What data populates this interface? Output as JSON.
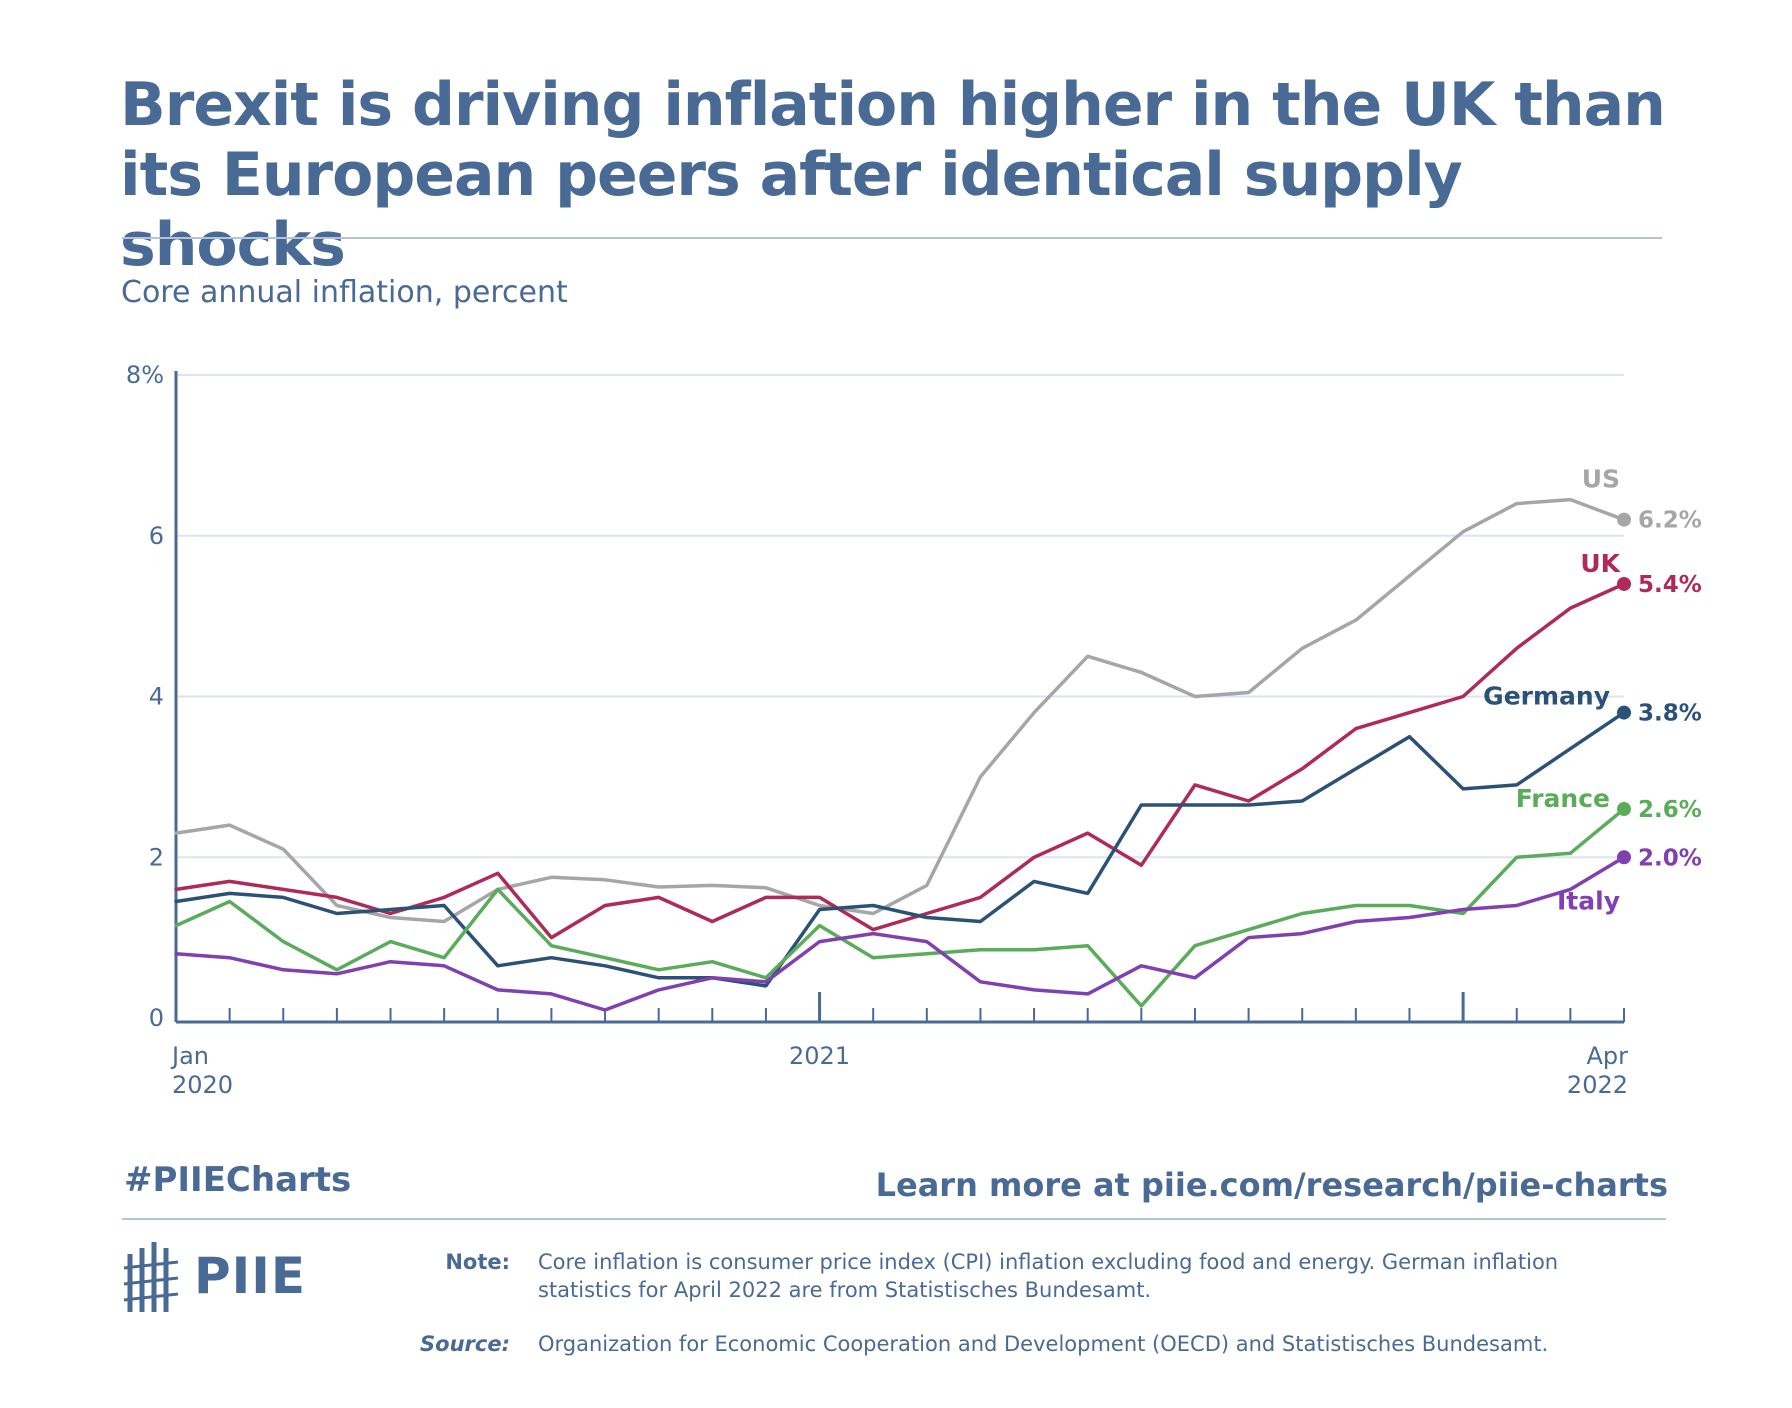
{
  "header": {
    "title_line1": "Brexit is driving inflation higher in the UK than",
    "title_line2": "its European peers after identical supply shocks",
    "subtitle": "Core annual inflation, percent"
  },
  "chart_data": {
    "type": "line",
    "title": "Brexit is driving inflation higher in the UK than its European peers after identical supply shocks",
    "ylabel": "Core annual inflation, percent",
    "xlabel": "",
    "ylim": [
      0,
      8
    ],
    "yticks": [
      {
        "value": 0,
        "label": "0"
      },
      {
        "value": 2,
        "label": "2"
      },
      {
        "value": 4,
        "label": "4"
      },
      {
        "value": 6,
        "label": "6"
      },
      {
        "value": 8,
        "label": "8%"
      }
    ],
    "x": [
      "Jan 2020",
      "Feb 2020",
      "Mar 2020",
      "Apr 2020",
      "May 2020",
      "Jun 2020",
      "Jul 2020",
      "Aug 2020",
      "Sep 2020",
      "Oct 2020",
      "Nov 2020",
      "Dec 2020",
      "Jan 2021",
      "Feb 2021",
      "Mar 2021",
      "Apr 2021",
      "May 2021",
      "Jun 2021",
      "Jul 2021",
      "Aug 2021",
      "Sep 2021",
      "Oct 2021",
      "Nov 2021",
      "Dec 2021",
      "Jan 2022",
      "Feb 2022",
      "Mar 2022",
      "Apr 2022"
    ],
    "xtick_labels": [
      {
        "index": 0,
        "line1": "Jan",
        "line2": "2020",
        "align": "start"
      },
      {
        "index": 12,
        "line1": "2021",
        "line2": "",
        "align": "middle"
      },
      {
        "index": 27,
        "line1": "Apr",
        "line2": "2022",
        "align": "end"
      }
    ],
    "major_ticks": [
      12,
      24
    ],
    "grid": true,
    "series": [
      {
        "name": "US",
        "color": "#a6a6a6",
        "end_label": "6.2%",
        "values": [
          2.3,
          2.4,
          2.1,
          1.4,
          1.25,
          1.2,
          1.6,
          1.75,
          1.72,
          1.63,
          1.65,
          1.62,
          1.4,
          1.3,
          1.65,
          3.0,
          3.8,
          4.5,
          4.3,
          4.0,
          4.05,
          4.6,
          4.95,
          5.5,
          6.05,
          6.4,
          6.45,
          6.2
        ]
      },
      {
        "name": "UK",
        "color": "#b02a57",
        "end_label": "5.4%",
        "values": [
          1.6,
          1.7,
          1.6,
          1.5,
          1.3,
          1.5,
          1.8,
          1.0,
          1.4,
          1.5,
          1.2,
          1.5,
          1.5,
          1.1,
          1.3,
          1.5,
          2.0,
          2.3,
          1.9,
          2.9,
          2.7,
          3.1,
          3.6,
          3.8,
          4.0,
          4.6,
          5.1,
          5.4
        ]
      },
      {
        "name": "Germany",
        "color": "#2c5176",
        "end_label": "3.8%",
        "values": [
          1.45,
          1.55,
          1.5,
          1.3,
          1.35,
          1.4,
          0.65,
          0.75,
          0.65,
          0.5,
          0.5,
          0.4,
          1.35,
          1.4,
          1.25,
          1.2,
          1.7,
          1.55,
          2.65,
          2.65,
          2.65,
          2.7,
          3.1,
          3.5,
          2.85,
          2.9,
          3.35,
          3.8
        ]
      },
      {
        "name": "France",
        "color": "#5aac5a",
        "end_label": "2.6%",
        "values": [
          1.15,
          1.45,
          0.95,
          0.6,
          0.95,
          0.75,
          1.6,
          0.9,
          0.75,
          0.6,
          0.7,
          0.5,
          1.15,
          0.75,
          0.8,
          0.85,
          0.85,
          0.9,
          0.15,
          0.9,
          1.1,
          1.3,
          1.4,
          1.4,
          1.3,
          2.0,
          2.05,
          2.6
        ]
      },
      {
        "name": "Italy",
        "color": "#8040b0",
        "end_label": "2.0%",
        "values": [
          0.8,
          0.75,
          0.6,
          0.55,
          0.7,
          0.65,
          0.35,
          0.3,
          0.1,
          0.35,
          0.5,
          0.45,
          0.95,
          1.05,
          0.95,
          0.45,
          0.35,
          0.3,
          0.65,
          0.5,
          1.0,
          1.05,
          1.2,
          1.25,
          1.35,
          1.4,
          1.6,
          2.0
        ]
      }
    ]
  },
  "footer": {
    "hashtag": "#PIIECharts",
    "learn_more": "Learn more at piie.com/research/piie-charts",
    "logo_text": "PIIE",
    "note_label": "Note:",
    "note_text": "Core inflation is consumer price index (CPI) inflation excluding food and energy. German inflation statistics for April 2022 are from Statistisches Bundesamt.",
    "source_label": "Source:",
    "source_text": "Organization for Economic Cooperation and Development (OECD) and Statistisches Bundesamt."
  },
  "colors": {
    "title": "#4a6a96",
    "axis": "#4a6a96",
    "grid": "#dde4ee",
    "rule": "#b5c3d6"
  }
}
